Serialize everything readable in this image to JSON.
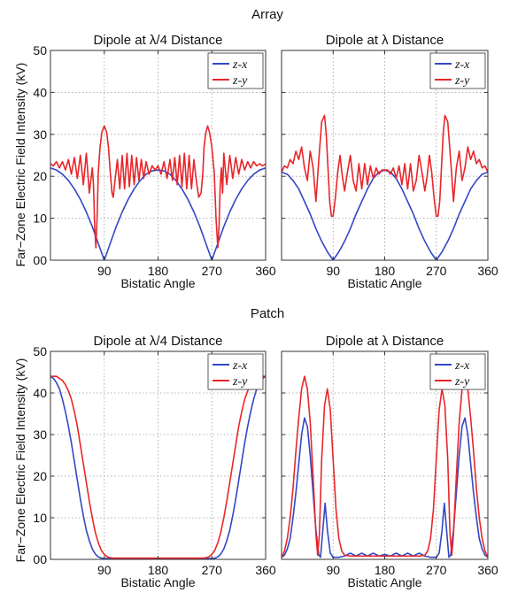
{
  "figure": {
    "group_titles": [
      "Array",
      "Patch"
    ],
    "ylabel": "Far−Zone Electric Field Intensity (kV)",
    "xlabel": "Bistatic Angle",
    "x_tick_labels": [
      "90",
      "180",
      "270",
      "360"
    ],
    "y_tick_labels": [
      "00",
      "10",
      "20",
      "30",
      "40",
      "50"
    ],
    "colors": {
      "z-x": "#3347c6",
      "z-y": "#e8262a",
      "grid": "#9a9a9a",
      "axes": "#333333"
    }
  },
  "chart_data": [
    {
      "type": "line",
      "group": "Array",
      "title": "Dipole at λ/4 Distance",
      "xlabel": "Bistatic Angle",
      "ylabel": "Far−Zone Electric Field Intensity (kV)",
      "xlim": [
        0,
        360
      ],
      "ylim": [
        0,
        50
      ],
      "xticks": [
        90,
        180,
        270,
        360
      ],
      "yticks": [
        0,
        10,
        20,
        30,
        40,
        50
      ],
      "grid": true,
      "legend": "top-right",
      "series": [
        {
          "name": "z-x",
          "color": "#3347c6",
          "x": [
            0,
            10,
            20,
            30,
            40,
            50,
            60,
            70,
            80,
            85,
            90,
            95,
            100,
            110,
            120,
            130,
            140,
            150,
            160,
            170,
            180,
            190,
            200,
            210,
            220,
            230,
            240,
            250,
            260,
            265,
            270,
            275,
            280,
            290,
            300,
            310,
            320,
            330,
            340,
            350,
            360
          ],
          "y": [
            22,
            21.5,
            20.5,
            19,
            17,
            14.5,
            11.5,
            8,
            4,
            2,
            0,
            2,
            4,
            8,
            11.5,
            14.5,
            17,
            19,
            20.5,
            21.3,
            21.5,
            21.3,
            20.5,
            19,
            17,
            14.5,
            11.5,
            8,
            4,
            2,
            0,
            2,
            4,
            8,
            11.5,
            14.5,
            17,
            19,
            20.5,
            21.5,
            22
          ]
        },
        {
          "name": "z-y",
          "color": "#e8262a",
          "x": [
            0,
            5,
            10,
            15,
            20,
            25,
            30,
            35,
            40,
            45,
            50,
            55,
            60,
            65,
            70,
            72,
            74,
            76,
            78,
            80,
            83,
            86,
            90,
            94,
            97,
            100,
            103,
            105,
            108,
            112,
            116,
            120,
            124,
            128,
            132,
            136,
            140,
            144,
            148,
            152,
            156,
            160,
            165,
            170,
            175,
            180,
            185,
            190,
            195,
            200,
            204,
            208,
            212,
            216,
            220,
            224,
            228,
            232,
            236,
            240,
            244,
            248,
            252,
            255,
            257,
            260,
            263,
            266,
            270,
            274,
            277,
            280,
            282,
            284,
            286,
            288,
            290,
            295,
            300,
            305,
            310,
            315,
            320,
            325,
            330,
            335,
            340,
            345,
            350,
            355,
            360
          ],
          "y": [
            23,
            22.5,
            23.5,
            22,
            23.5,
            21.5,
            24,
            20.5,
            24.5,
            19.5,
            25,
            18,
            25.5,
            16,
            22,
            18,
            8,
            3,
            10,
            21,
            27,
            30.5,
            32,
            30.5,
            27,
            21,
            16,
            15,
            19,
            24,
            17,
            25,
            17,
            25.5,
            17.5,
            25,
            18,
            24.5,
            19,
            24,
            19.5,
            23.5,
            20.5,
            22.5,
            21.5,
            22.5,
            20.5,
            23.5,
            19.5,
            24,
            19,
            24.5,
            18,
            25,
            17.5,
            25.5,
            17,
            25,
            17,
            24,
            19,
            15,
            16,
            21,
            27,
            30.5,
            32,
            30.5,
            27,
            21,
            10,
            3,
            8,
            18,
            22,
            16,
            25.5,
            18,
            25,
            19.5,
            24.5,
            20.5,
            24,
            21.5,
            23.5,
            22,
            23.5,
            22.5,
            23,
            22.5,
            23
          ]
        }
      ]
    },
    {
      "type": "line",
      "group": "Array",
      "title": "Dipole at λ Distance",
      "xlabel": "Bistatic Angle",
      "xlim": [
        0,
        360
      ],
      "ylim": [
        0,
        50
      ],
      "xticks": [
        90,
        180,
        270,
        360
      ],
      "yticks": [
        0,
        10,
        20,
        30,
        40,
        50
      ],
      "grid": true,
      "legend": "top-right",
      "series": [
        {
          "name": "z-x",
          "color": "#3347c6",
          "x": [
            0,
            10,
            20,
            30,
            40,
            50,
            60,
            70,
            80,
            85,
            90,
            95,
            100,
            110,
            120,
            130,
            140,
            150,
            160,
            170,
            180,
            190,
            200,
            210,
            220,
            230,
            240,
            250,
            260,
            265,
            270,
            275,
            280,
            290,
            300,
            310,
            320,
            330,
            340,
            350,
            360
          ],
          "y": [
            21,
            20.5,
            19,
            17,
            14,
            11,
            7.5,
            4.5,
            2,
            1,
            0,
            1,
            2,
            4.5,
            7.5,
            11,
            14,
            17,
            19.5,
            21,
            21.5,
            21,
            19.5,
            17,
            14,
            11,
            7.5,
            4.5,
            2,
            1,
            0,
            1,
            2,
            4.5,
            7.5,
            11,
            14,
            17,
            19,
            20.5,
            21
          ]
        },
        {
          "name": "z-y",
          "color": "#e8262a",
          "x": [
            0,
            5,
            10,
            15,
            20,
            25,
            30,
            35,
            40,
            45,
            50,
            55,
            60,
            65,
            70,
            75,
            78,
            81,
            84,
            87,
            90,
            94,
            98,
            102,
            106,
            110,
            115,
            120,
            125,
            130,
            135,
            140,
            145,
            150,
            155,
            160,
            165,
            170,
            175,
            180,
            185,
            190,
            195,
            200,
            205,
            210,
            215,
            220,
            225,
            230,
            235,
            240,
            245,
            250,
            254,
            258,
            262,
            266,
            270,
            273,
            276,
            279,
            282,
            285,
            290,
            295,
            300,
            305,
            310,
            315,
            320,
            325,
            330,
            335,
            340,
            345,
            350,
            355,
            360
          ],
          "y": [
            21,
            22.5,
            22,
            24,
            23,
            26,
            24,
            27,
            22,
            19,
            26,
            22,
            14,
            24,
            33,
            34.5,
            30,
            22,
            14,
            10.5,
            10.5,
            15,
            21,
            25,
            20,
            16.5,
            21,
            25,
            19,
            16.5,
            23,
            17,
            23,
            18,
            22.5,
            19.5,
            22,
            20.5,
            21.5,
            21.5,
            21.5,
            20.5,
            22,
            19.5,
            22.5,
            18,
            23,
            17,
            23,
            16.5,
            19,
            25,
            21,
            16.5,
            20,
            25,
            21,
            15,
            10.5,
            10.5,
            14,
            22,
            30,
            34.5,
            33,
            24,
            14,
            22,
            26,
            19,
            22,
            27,
            24,
            26,
            23,
            24,
            22,
            22.5,
            21
          ]
        }
      ]
    },
    {
      "type": "line",
      "group": "Patch",
      "title": "Dipole at λ/4 Distance",
      "xlabel": "Bistatic Angle",
      "ylabel": "Far−Zone Electric Field Intensity (kV)",
      "xlim": [
        0,
        360
      ],
      "ylim": [
        0,
        50
      ],
      "xticks": [
        90,
        180,
        270,
        360
      ],
      "yticks": [
        0,
        10,
        20,
        30,
        40,
        50
      ],
      "grid": true,
      "legend": "top-right",
      "series": [
        {
          "name": "z-x",
          "color": "#3347c6",
          "x": [
            0,
            5,
            10,
            15,
            20,
            25,
            30,
            35,
            40,
            45,
            50,
            55,
            60,
            65,
            70,
            75,
            80,
            85,
            90,
            95,
            100,
            110,
            120,
            150,
            180,
            210,
            240,
            250,
            260,
            265,
            270,
            275,
            280,
            285,
            290,
            295,
            300,
            305,
            310,
            315,
            320,
            325,
            330,
            335,
            340,
            345,
            350,
            355,
            360
          ],
          "y": [
            44,
            43.5,
            42.5,
            41,
            38.5,
            35.5,
            32,
            28,
            23.5,
            19,
            14.5,
            10.5,
            7,
            4.5,
            2.5,
            1.3,
            0.6,
            0.3,
            0.2,
            0.2,
            0.2,
            0.2,
            0.2,
            0.2,
            0.2,
            0.2,
            0.2,
            0.2,
            0.2,
            0.2,
            0.2,
            0.3,
            0.6,
            1.3,
            2.5,
            4.5,
            7,
            10.5,
            14.5,
            19,
            23.5,
            28,
            32,
            35.5,
            38.5,
            41,
            42.5,
            43.5,
            44
          ]
        },
        {
          "name": "z-y",
          "color": "#e8262a",
          "x": [
            0,
            5,
            10,
            15,
            20,
            25,
            30,
            35,
            40,
            45,
            50,
            55,
            60,
            65,
            70,
            75,
            80,
            85,
            90,
            95,
            100,
            105,
            110,
            120,
            150,
            180,
            210,
            240,
            250,
            255,
            260,
            265,
            270,
            275,
            280,
            285,
            290,
            295,
            300,
            305,
            310,
            315,
            320,
            325,
            330,
            335,
            340,
            345,
            350,
            355,
            360
          ],
          "y": [
            44,
            44,
            44,
            43.5,
            43,
            42,
            40.5,
            38.5,
            35.5,
            32,
            27.5,
            23,
            18.5,
            14,
            10,
            6.5,
            4,
            2.2,
            1.2,
            0.6,
            0.4,
            0.3,
            0.3,
            0.3,
            0.3,
            0.3,
            0.3,
            0.3,
            0.3,
            0.3,
            0.4,
            0.6,
            1.2,
            2.2,
            4,
            6.5,
            10,
            14,
            18.5,
            23,
            27.5,
            32,
            35.5,
            38.5,
            40.5,
            42,
            43,
            43.5,
            44,
            44,
            44
          ]
        }
      ]
    },
    {
      "type": "line",
      "group": "Patch",
      "title": "Dipole at λ Distance",
      "xlabel": "Bistatic Angle",
      "xlim": [
        0,
        360
      ],
      "ylim": [
        0,
        50
      ],
      "xticks": [
        90,
        180,
        270,
        360
      ],
      "yticks": [
        0,
        10,
        20,
        30,
        40,
        50
      ],
      "grid": true,
      "legend": "top-right",
      "series": [
        {
          "name": "z-x",
          "color": "#3347c6",
          "x": [
            0,
            5,
            10,
            15,
            20,
            25,
            30,
            35,
            40,
            45,
            50,
            55,
            60,
            65,
            68,
            72,
            76,
            80,
            85,
            90,
            95,
            100,
            110,
            120,
            130,
            140,
            150,
            160,
            170,
            180,
            190,
            200,
            210,
            220,
            230,
            240,
            250,
            260,
            265,
            270,
            275,
            280,
            284,
            288,
            292,
            295,
            300,
            305,
            310,
            315,
            320,
            325,
            330,
            335,
            340,
            345,
            350,
            355,
            360
          ],
          "y": [
            0.5,
            1,
            2.5,
            5,
            10,
            16,
            23,
            30,
            34,
            32,
            25,
            16,
            7,
            1,
            0.5,
            7,
            13.5,
            7,
            1.5,
            0.5,
            0.5,
            0.5,
            0.8,
            1.5,
            0.8,
            1.5,
            0.8,
            1.5,
            0.8,
            1.2,
            0.8,
            1.5,
            0.8,
            1.5,
            0.8,
            1.5,
            0.8,
            0.5,
            0.5,
            0.5,
            1.5,
            7,
            13.5,
            7,
            0.5,
            1,
            7,
            16,
            25,
            32,
            34,
            30,
            23,
            16,
            10,
            5,
            2.5,
            1,
            0.5
          ]
        },
        {
          "name": "z-y",
          "color": "#e8262a",
          "x": [
            0,
            5,
            10,
            15,
            20,
            25,
            30,
            35,
            40,
            45,
            50,
            55,
            60,
            63,
            66,
            70,
            75,
            80,
            85,
            90,
            95,
            100,
            105,
            110,
            120,
            130,
            140,
            150,
            160,
            170,
            180,
            190,
            200,
            210,
            220,
            230,
            240,
            250,
            255,
            260,
            265,
            270,
            275,
            280,
            285,
            290,
            294,
            297,
            300,
            305,
            310,
            315,
            320,
            325,
            330,
            335,
            340,
            345,
            350,
            355,
            360
          ],
          "y": [
            0.5,
            2,
            5,
            10,
            17,
            26,
            34,
            41,
            44,
            41,
            33,
            20,
            6,
            1,
            6,
            24,
            37,
            41,
            36,
            24,
            12,
            5,
            2,
            1,
            0.8,
            0.8,
            0.8,
            0.8,
            0.8,
            0.8,
            0.8,
            0.8,
            0.8,
            0.8,
            0.8,
            0.8,
            0.8,
            1,
            2,
            5,
            12,
            24,
            36,
            41,
            37,
            24,
            6,
            1,
            6,
            20,
            33,
            41,
            44,
            41,
            34,
            26,
            17,
            10,
            5,
            2,
            0.5
          ]
        }
      ]
    }
  ]
}
